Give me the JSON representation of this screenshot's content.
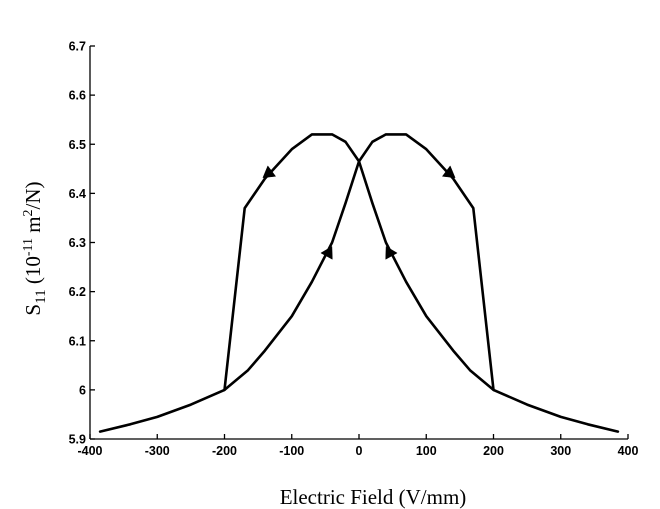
{
  "chart_data": {
    "type": "line",
    "xlabel": "Electric Field (V/mm)",
    "ylabel": {
      "prefix": "S",
      "subscript": "11",
      "open": " (10",
      "exp": "-11",
      "mid": " m",
      "exp2": "2",
      "close": "/N)"
    },
    "xlim": [
      -400,
      400
    ],
    "ylim": [
      5.9,
      6.7
    ],
    "x_ticks": [
      -400,
      -300,
      -200,
      -100,
      0,
      100,
      200,
      300,
      400
    ],
    "x_tick_labels": [
      "-400",
      "-300",
      "-200",
      "-100",
      "0",
      "100",
      "200",
      "300",
      "400"
    ],
    "y_ticks": [
      5.9,
      6,
      6.1,
      6.2,
      6.3,
      6.4,
      6.5,
      6.6,
      6.7
    ],
    "y_tick_labels": [
      "5.9",
      "6",
      "6.1",
      "6.2",
      "6.3",
      "6.4",
      "6.5",
      "6.6",
      "6.7"
    ],
    "grid": false,
    "series": [
      {
        "x": [
          -385,
          -340,
          -300,
          -250,
          -200,
          -170,
          -140,
          -100,
          -70,
          -40,
          -20,
          0,
          20,
          40,
          70,
          100,
          140,
          165,
          200
        ],
        "y": [
          5.915,
          5.93,
          5.945,
          5.97,
          6.0,
          6.37,
          6.43,
          6.49,
          6.52,
          6.52,
          6.505,
          6.465,
          6.38,
          6.3,
          6.22,
          6.15,
          6.08,
          6.04,
          6.0
        ]
      },
      {
        "x": [
          -200,
          -165,
          -140,
          -100,
          -70,
          -40,
          -20,
          0,
          20,
          40,
          70,
          100,
          140,
          170,
          200,
          250,
          300,
          340,
          385
        ],
        "y": [
          6.0,
          6.04,
          6.08,
          6.15,
          6.22,
          6.3,
          6.38,
          6.465,
          6.505,
          6.52,
          6.52,
          6.49,
          6.43,
          6.37,
          6.0,
          5.97,
          5.945,
          5.93,
          5.915
        ]
      }
    ],
    "arrows": [
      {
        "x": -135,
        "y": 6.44,
        "direction": "down-left"
      },
      {
        "x": 135,
        "y": 6.44,
        "direction": "down-right"
      },
      {
        "x": -45,
        "y": 6.28,
        "direction": "up-right"
      },
      {
        "x": 45,
        "y": 6.28,
        "direction": "up-left"
      }
    ]
  }
}
